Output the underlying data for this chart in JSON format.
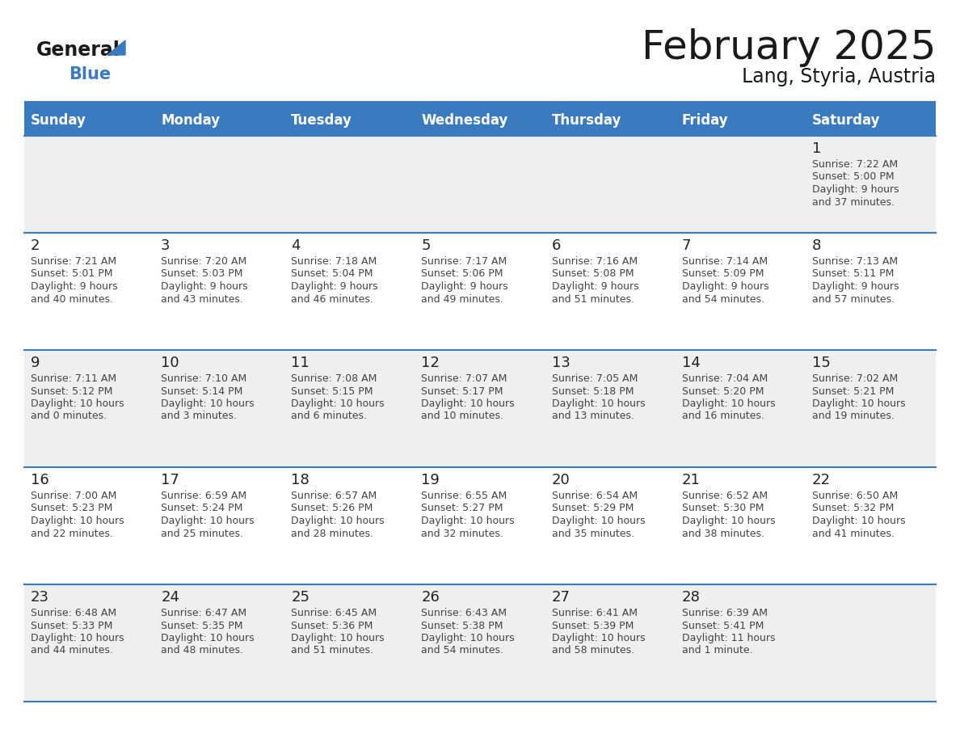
{
  "title": "February 2025",
  "subtitle": "Lang, Styria, Austria",
  "days_of_week": [
    "Sunday",
    "Monday",
    "Tuesday",
    "Wednesday",
    "Thursday",
    "Friday",
    "Saturday"
  ],
  "header_bg": "#3a7abf",
  "header_text": "#ffffff",
  "cell_bg_light": "#efefef",
  "cell_bg_white": "#ffffff",
  "border_color": "#3a7abf",
  "text_color": "#444444",
  "day_num_color": "#222222",
  "calendar_data": [
    {
      "day": 1,
      "col": 6,
      "row": 0,
      "sunrise": "7:22 AM",
      "sunset": "5:00 PM",
      "daylight_hours": 9,
      "daylight_minutes": 37
    },
    {
      "day": 2,
      "col": 0,
      "row": 1,
      "sunrise": "7:21 AM",
      "sunset": "5:01 PM",
      "daylight_hours": 9,
      "daylight_minutes": 40
    },
    {
      "day": 3,
      "col": 1,
      "row": 1,
      "sunrise": "7:20 AM",
      "sunset": "5:03 PM",
      "daylight_hours": 9,
      "daylight_minutes": 43
    },
    {
      "day": 4,
      "col": 2,
      "row": 1,
      "sunrise": "7:18 AM",
      "sunset": "5:04 PM",
      "daylight_hours": 9,
      "daylight_minutes": 46
    },
    {
      "day": 5,
      "col": 3,
      "row": 1,
      "sunrise": "7:17 AM",
      "sunset": "5:06 PM",
      "daylight_hours": 9,
      "daylight_minutes": 49
    },
    {
      "day": 6,
      "col": 4,
      "row": 1,
      "sunrise": "7:16 AM",
      "sunset": "5:08 PM",
      "daylight_hours": 9,
      "daylight_minutes": 51
    },
    {
      "day": 7,
      "col": 5,
      "row": 1,
      "sunrise": "7:14 AM",
      "sunset": "5:09 PM",
      "daylight_hours": 9,
      "daylight_minutes": 54
    },
    {
      "day": 8,
      "col": 6,
      "row": 1,
      "sunrise": "7:13 AM",
      "sunset": "5:11 PM",
      "daylight_hours": 9,
      "daylight_minutes": 57
    },
    {
      "day": 9,
      "col": 0,
      "row": 2,
      "sunrise": "7:11 AM",
      "sunset": "5:12 PM",
      "daylight_hours": 10,
      "daylight_minutes": 0
    },
    {
      "day": 10,
      "col": 1,
      "row": 2,
      "sunrise": "7:10 AM",
      "sunset": "5:14 PM",
      "daylight_hours": 10,
      "daylight_minutes": 3
    },
    {
      "day": 11,
      "col": 2,
      "row": 2,
      "sunrise": "7:08 AM",
      "sunset": "5:15 PM",
      "daylight_hours": 10,
      "daylight_minutes": 6
    },
    {
      "day": 12,
      "col": 3,
      "row": 2,
      "sunrise": "7:07 AM",
      "sunset": "5:17 PM",
      "daylight_hours": 10,
      "daylight_minutes": 10
    },
    {
      "day": 13,
      "col": 4,
      "row": 2,
      "sunrise": "7:05 AM",
      "sunset": "5:18 PM",
      "daylight_hours": 10,
      "daylight_minutes": 13
    },
    {
      "day": 14,
      "col": 5,
      "row": 2,
      "sunrise": "7:04 AM",
      "sunset": "5:20 PM",
      "daylight_hours": 10,
      "daylight_minutes": 16
    },
    {
      "day": 15,
      "col": 6,
      "row": 2,
      "sunrise": "7:02 AM",
      "sunset": "5:21 PM",
      "daylight_hours": 10,
      "daylight_minutes": 19
    },
    {
      "day": 16,
      "col": 0,
      "row": 3,
      "sunrise": "7:00 AM",
      "sunset": "5:23 PM",
      "daylight_hours": 10,
      "daylight_minutes": 22
    },
    {
      "day": 17,
      "col": 1,
      "row": 3,
      "sunrise": "6:59 AM",
      "sunset": "5:24 PM",
      "daylight_hours": 10,
      "daylight_minutes": 25
    },
    {
      "day": 18,
      "col": 2,
      "row": 3,
      "sunrise": "6:57 AM",
      "sunset": "5:26 PM",
      "daylight_hours": 10,
      "daylight_minutes": 28
    },
    {
      "day": 19,
      "col": 3,
      "row": 3,
      "sunrise": "6:55 AM",
      "sunset": "5:27 PM",
      "daylight_hours": 10,
      "daylight_minutes": 32
    },
    {
      "day": 20,
      "col": 4,
      "row": 3,
      "sunrise": "6:54 AM",
      "sunset": "5:29 PM",
      "daylight_hours": 10,
      "daylight_minutes": 35
    },
    {
      "day": 21,
      "col": 5,
      "row": 3,
      "sunrise": "6:52 AM",
      "sunset": "5:30 PM",
      "daylight_hours": 10,
      "daylight_minutes": 38
    },
    {
      "day": 22,
      "col": 6,
      "row": 3,
      "sunrise": "6:50 AM",
      "sunset": "5:32 PM",
      "daylight_hours": 10,
      "daylight_minutes": 41
    },
    {
      "day": 23,
      "col": 0,
      "row": 4,
      "sunrise": "6:48 AM",
      "sunset": "5:33 PM",
      "daylight_hours": 10,
      "daylight_minutes": 44
    },
    {
      "day": 24,
      "col": 1,
      "row": 4,
      "sunrise": "6:47 AM",
      "sunset": "5:35 PM",
      "daylight_hours": 10,
      "daylight_minutes": 48
    },
    {
      "day": 25,
      "col": 2,
      "row": 4,
      "sunrise": "6:45 AM",
      "sunset": "5:36 PM",
      "daylight_hours": 10,
      "daylight_minutes": 51
    },
    {
      "day": 26,
      "col": 3,
      "row": 4,
      "sunrise": "6:43 AM",
      "sunset": "5:38 PM",
      "daylight_hours": 10,
      "daylight_minutes": 54
    },
    {
      "day": 27,
      "col": 4,
      "row": 4,
      "sunrise": "6:41 AM",
      "sunset": "5:39 PM",
      "daylight_hours": 10,
      "daylight_minutes": 58
    },
    {
      "day": 28,
      "col": 5,
      "row": 4,
      "sunrise": "6:39 AM",
      "sunset": "5:41 PM",
      "daylight_hours": 11,
      "daylight_minutes": 1
    }
  ]
}
